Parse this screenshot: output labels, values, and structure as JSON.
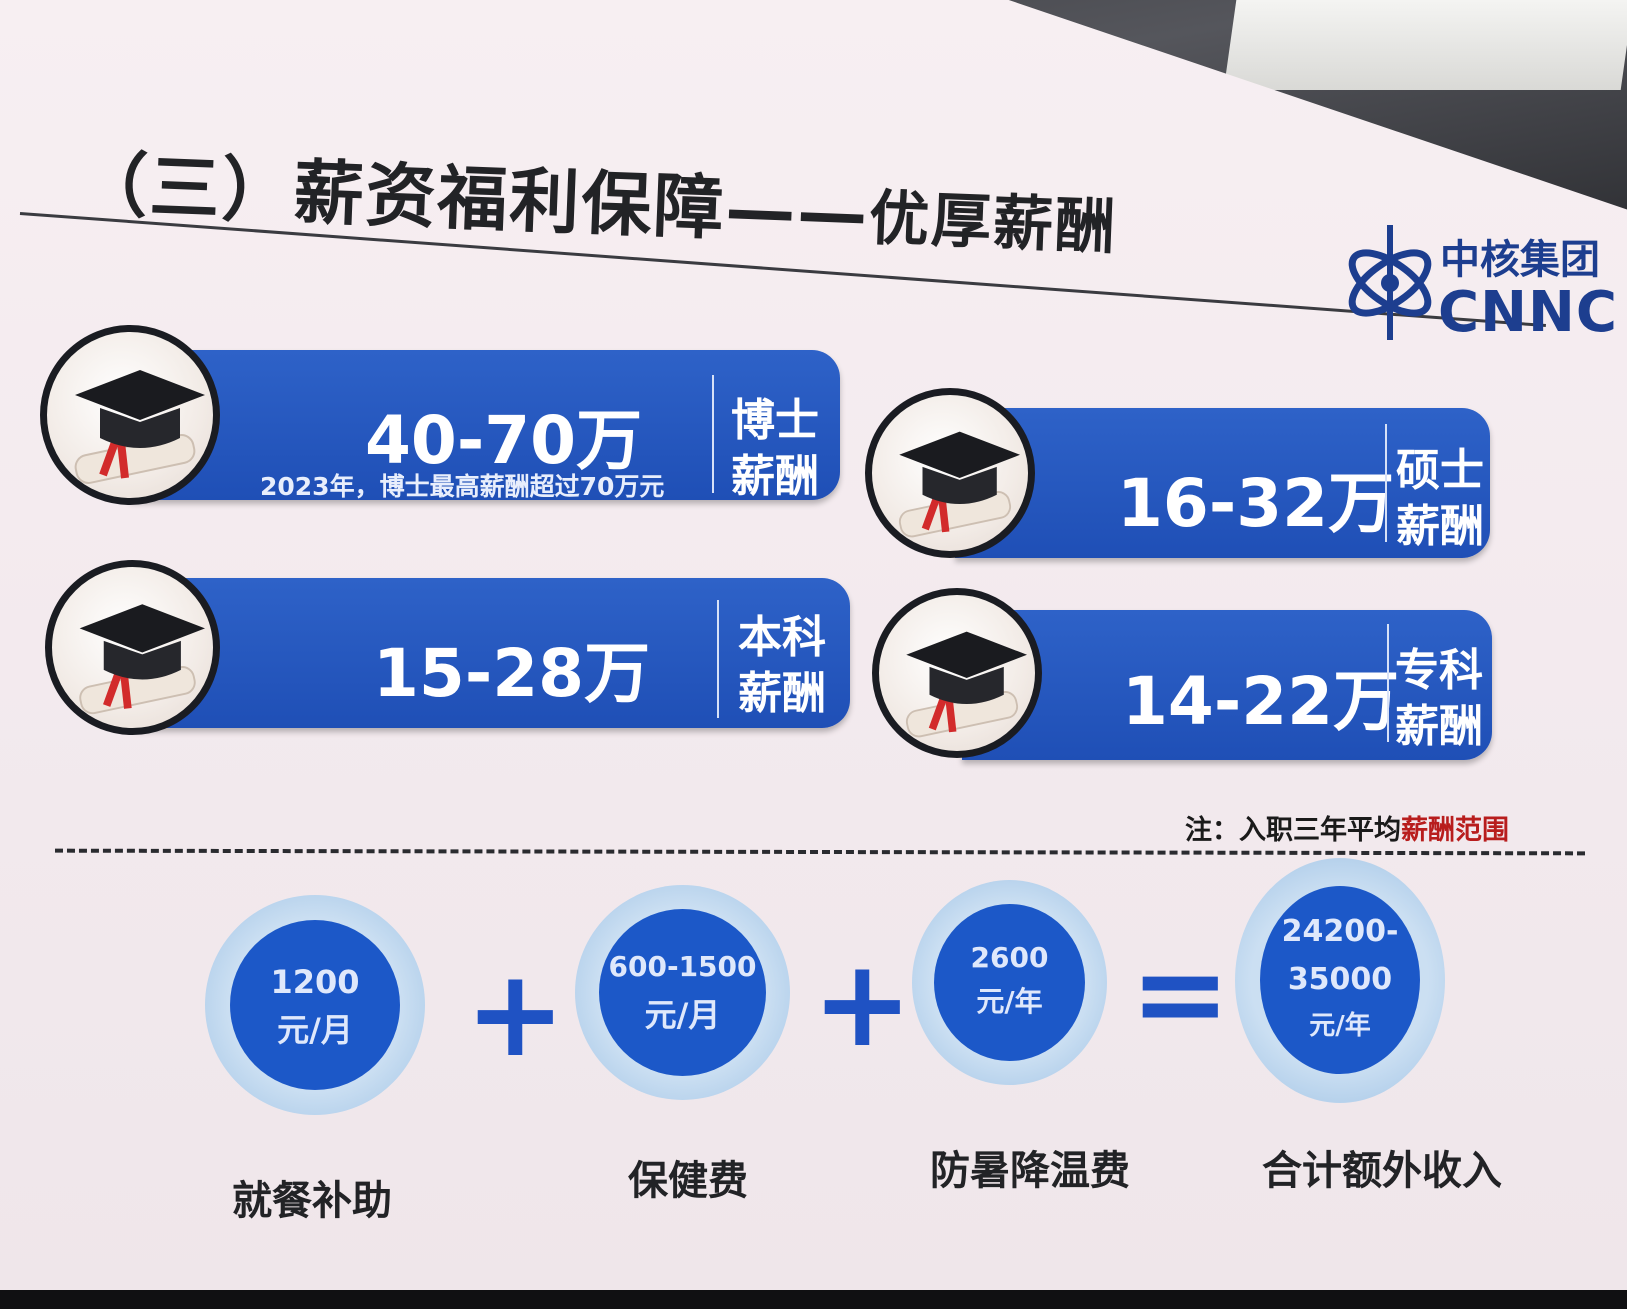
{
  "title": {
    "main": "（三）薪资福利保障——",
    "sub": "优厚薪酬"
  },
  "logo": {
    "cn": "中核集团",
    "en": "CNNC"
  },
  "salary_cards": [
    {
      "amount": "40-70万",
      "note": "2023年，博士最高薪酬超过70万元",
      "tag_line1": "博士",
      "tag_line2": "薪酬"
    },
    {
      "amount": "16-32万",
      "note": "",
      "tag_line1": "硕士",
      "tag_line2": "薪酬"
    },
    {
      "amount": "15-28万",
      "note": "",
      "tag_line1": "本科",
      "tag_line2": "薪酬"
    },
    {
      "amount": "14-22万",
      "note": "",
      "tag_line1": "专科",
      "tag_line2": "薪酬"
    }
  ],
  "footnote": {
    "prefix": "注：入职三年平均",
    "highlight": "薪酬范围"
  },
  "benefits": [
    {
      "line1": "1200",
      "line2": "元/月",
      "caption": "就餐补助"
    },
    {
      "line1": "600-1500",
      "line2": "元/月",
      "caption": "保健费"
    },
    {
      "line1": "2600",
      "line2": "元/年",
      "caption": "防暑降温费"
    },
    {
      "line1": "24200-",
      "line2": "35000",
      "line3": "元/年",
      "caption": "合计额外收入"
    }
  ],
  "operators": [
    "+",
    "+",
    "="
  ],
  "colors": {
    "accent_blue": "#1f4fb6",
    "footnote_red": "#b81d1d",
    "logo_blue": "#1d3e8f"
  }
}
